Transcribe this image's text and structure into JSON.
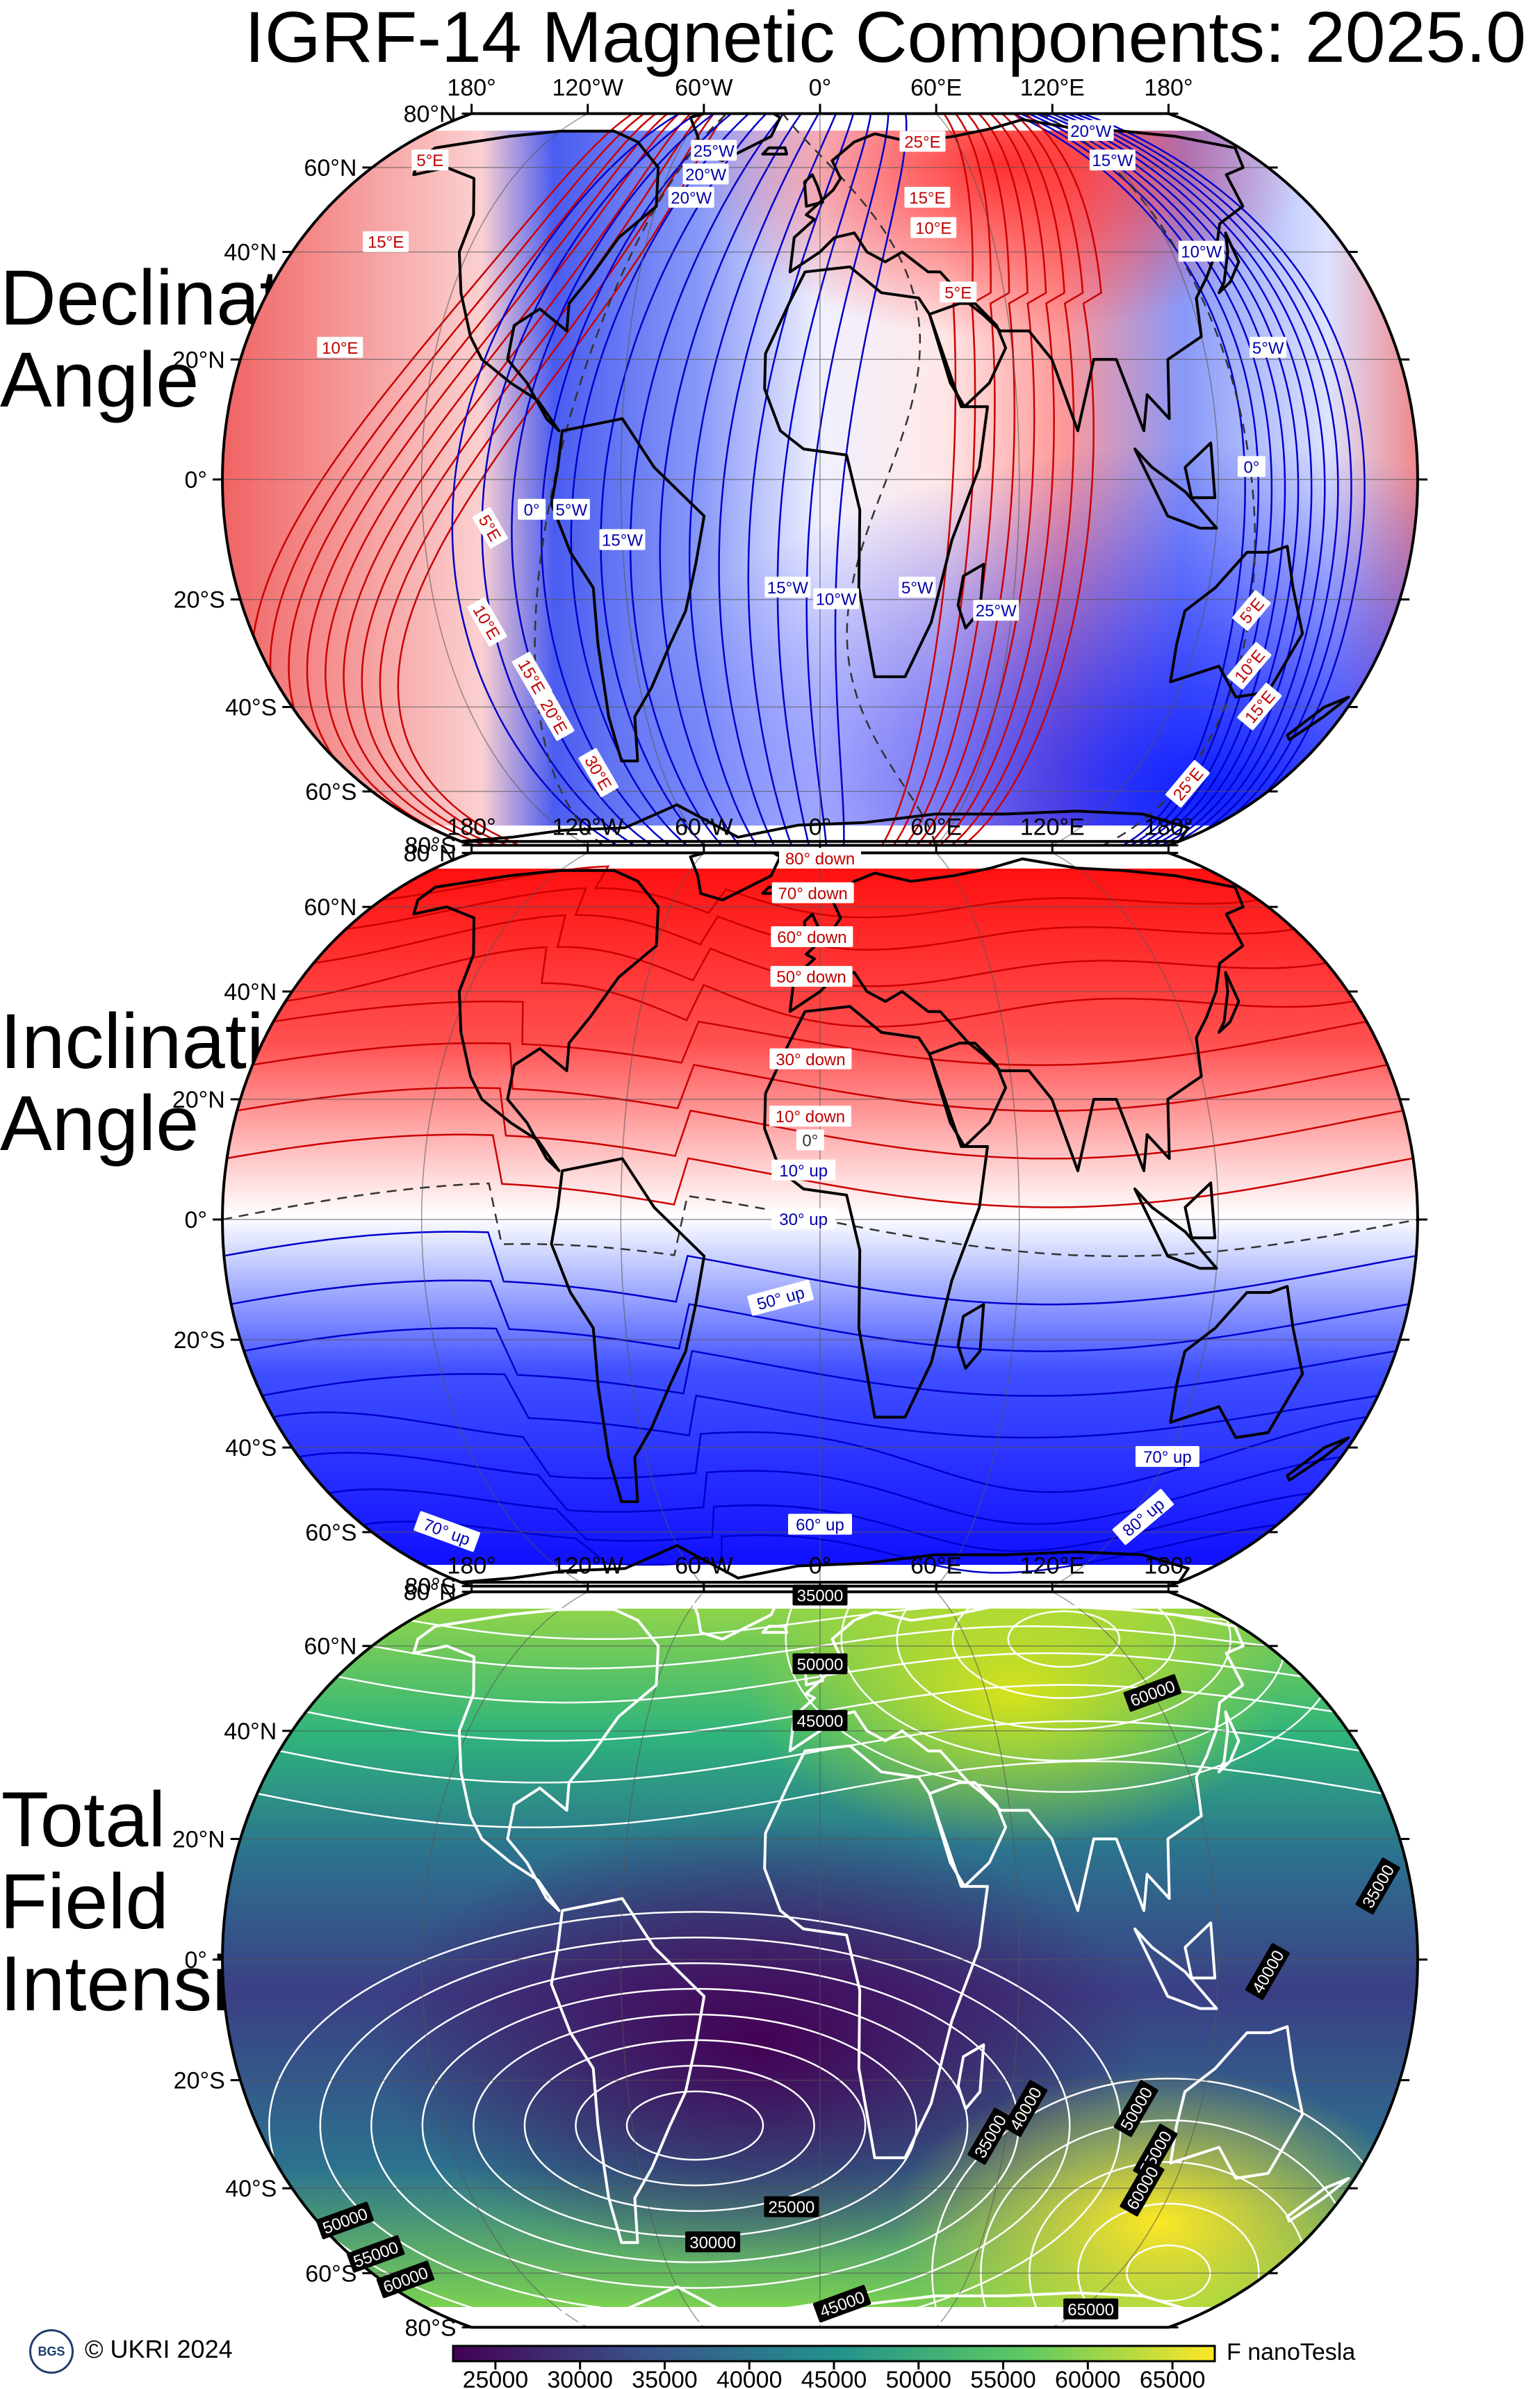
{
  "title": "IGRF-14 Magnetic Components: 2025.0",
  "panels": [
    {
      "id": "declination",
      "label_lines": [
        "Declination",
        "Angle"
      ],
      "contour_labels": [
        "5°E",
        "15°E",
        "10°E",
        "5°E",
        "10°E",
        "15°E",
        "20°E",
        "30°E",
        "0°",
        "5°W",
        "15°W",
        "25°W",
        "20°W",
        "20°W",
        "15°W",
        "10°W",
        "5°W",
        "25°W",
        "25°E",
        "15°E",
        "10°E",
        "5°E",
        "20°W",
        "15°W",
        "10°W",
        "5°W",
        "0°",
        "5°E",
        "10°E",
        "15°E",
        "25°E"
      ]
    },
    {
      "id": "inclination",
      "label_lines": [
        "Inclination",
        "Angle"
      ],
      "contour_labels": [
        "80° down",
        "70° down",
        "60° down",
        "50° down",
        "30° down",
        "10° down",
        "0°",
        "10° up",
        "30° up",
        "50° up",
        "60° up",
        "70° up",
        "80° up",
        "70° up"
      ]
    },
    {
      "id": "total-field",
      "label_lines": [
        "Total Field",
        "Intensity"
      ],
      "contour_labels": [
        "35000",
        "50000",
        "45000",
        "60000",
        "35000",
        "40000",
        "50000",
        "55000",
        "60000",
        "40000",
        "35000",
        "25000",
        "30000",
        "50000",
        "55000",
        "60000",
        "45000",
        "65000"
      ]
    }
  ],
  "axes": {
    "lon_labels": [
      "180°",
      "120°W",
      "60°W",
      "0°",
      "60°E",
      "120°E",
      "180°"
    ],
    "lat_labels": [
      "80°N",
      "60°N",
      "40°N",
      "20°N",
      "0°",
      "20°S",
      "40°S",
      "60°S",
      "80°S"
    ]
  },
  "colorbar": {
    "ticks": [
      "25000",
      "30000",
      "35000",
      "40000",
      "45000",
      "50000",
      "55000",
      "60000",
      "65000"
    ],
    "unit_label": "F nanoTesla",
    "colors": [
      "#440154",
      "#3b528b",
      "#21918c",
      "#5ec962",
      "#fde725"
    ]
  },
  "footer": {
    "logo_text": "BGS",
    "copyright": "© UKRI 2024"
  }
}
